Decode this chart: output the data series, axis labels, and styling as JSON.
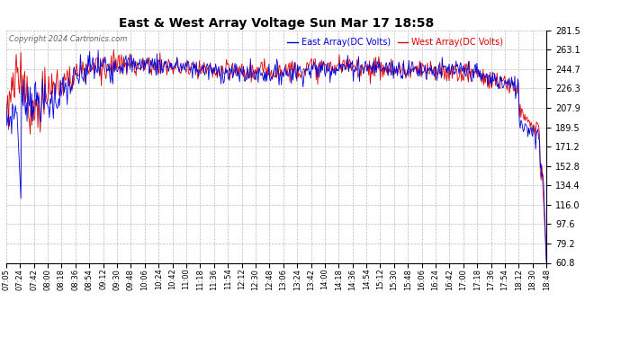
{
  "title": "East & West Array Voltage Sun Mar 17 18:58",
  "copyright": "Copyright 2024 Cartronics.com",
  "legend_east": "East Array(DC Volts)",
  "legend_west": "West Array(DC Volts)",
  "east_color": "#0000dd",
  "west_color": "#dd0000",
  "background_color": "#ffffff",
  "grid_color": "#bbbbbb",
  "y_ticks": [
    60.8,
    79.2,
    97.6,
    116.0,
    134.4,
    152.8,
    171.2,
    189.5,
    207.9,
    226.3,
    244.7,
    263.1,
    281.5
  ],
  "ylim": [
    60.8,
    281.5
  ],
  "x_tick_labels": [
    "07:05",
    "07:24",
    "07:42",
    "08:00",
    "08:18",
    "08:36",
    "08:54",
    "09:12",
    "09:30",
    "09:48",
    "10:06",
    "10:24",
    "10:42",
    "11:00",
    "11:18",
    "11:36",
    "11:54",
    "12:12",
    "12:30",
    "12:48",
    "13:06",
    "13:24",
    "13:42",
    "14:00",
    "14:18",
    "14:36",
    "14:54",
    "15:12",
    "15:30",
    "15:48",
    "16:06",
    "16:24",
    "16:42",
    "17:00",
    "17:18",
    "17:36",
    "17:54",
    "18:12",
    "18:30",
    "18:48"
  ]
}
